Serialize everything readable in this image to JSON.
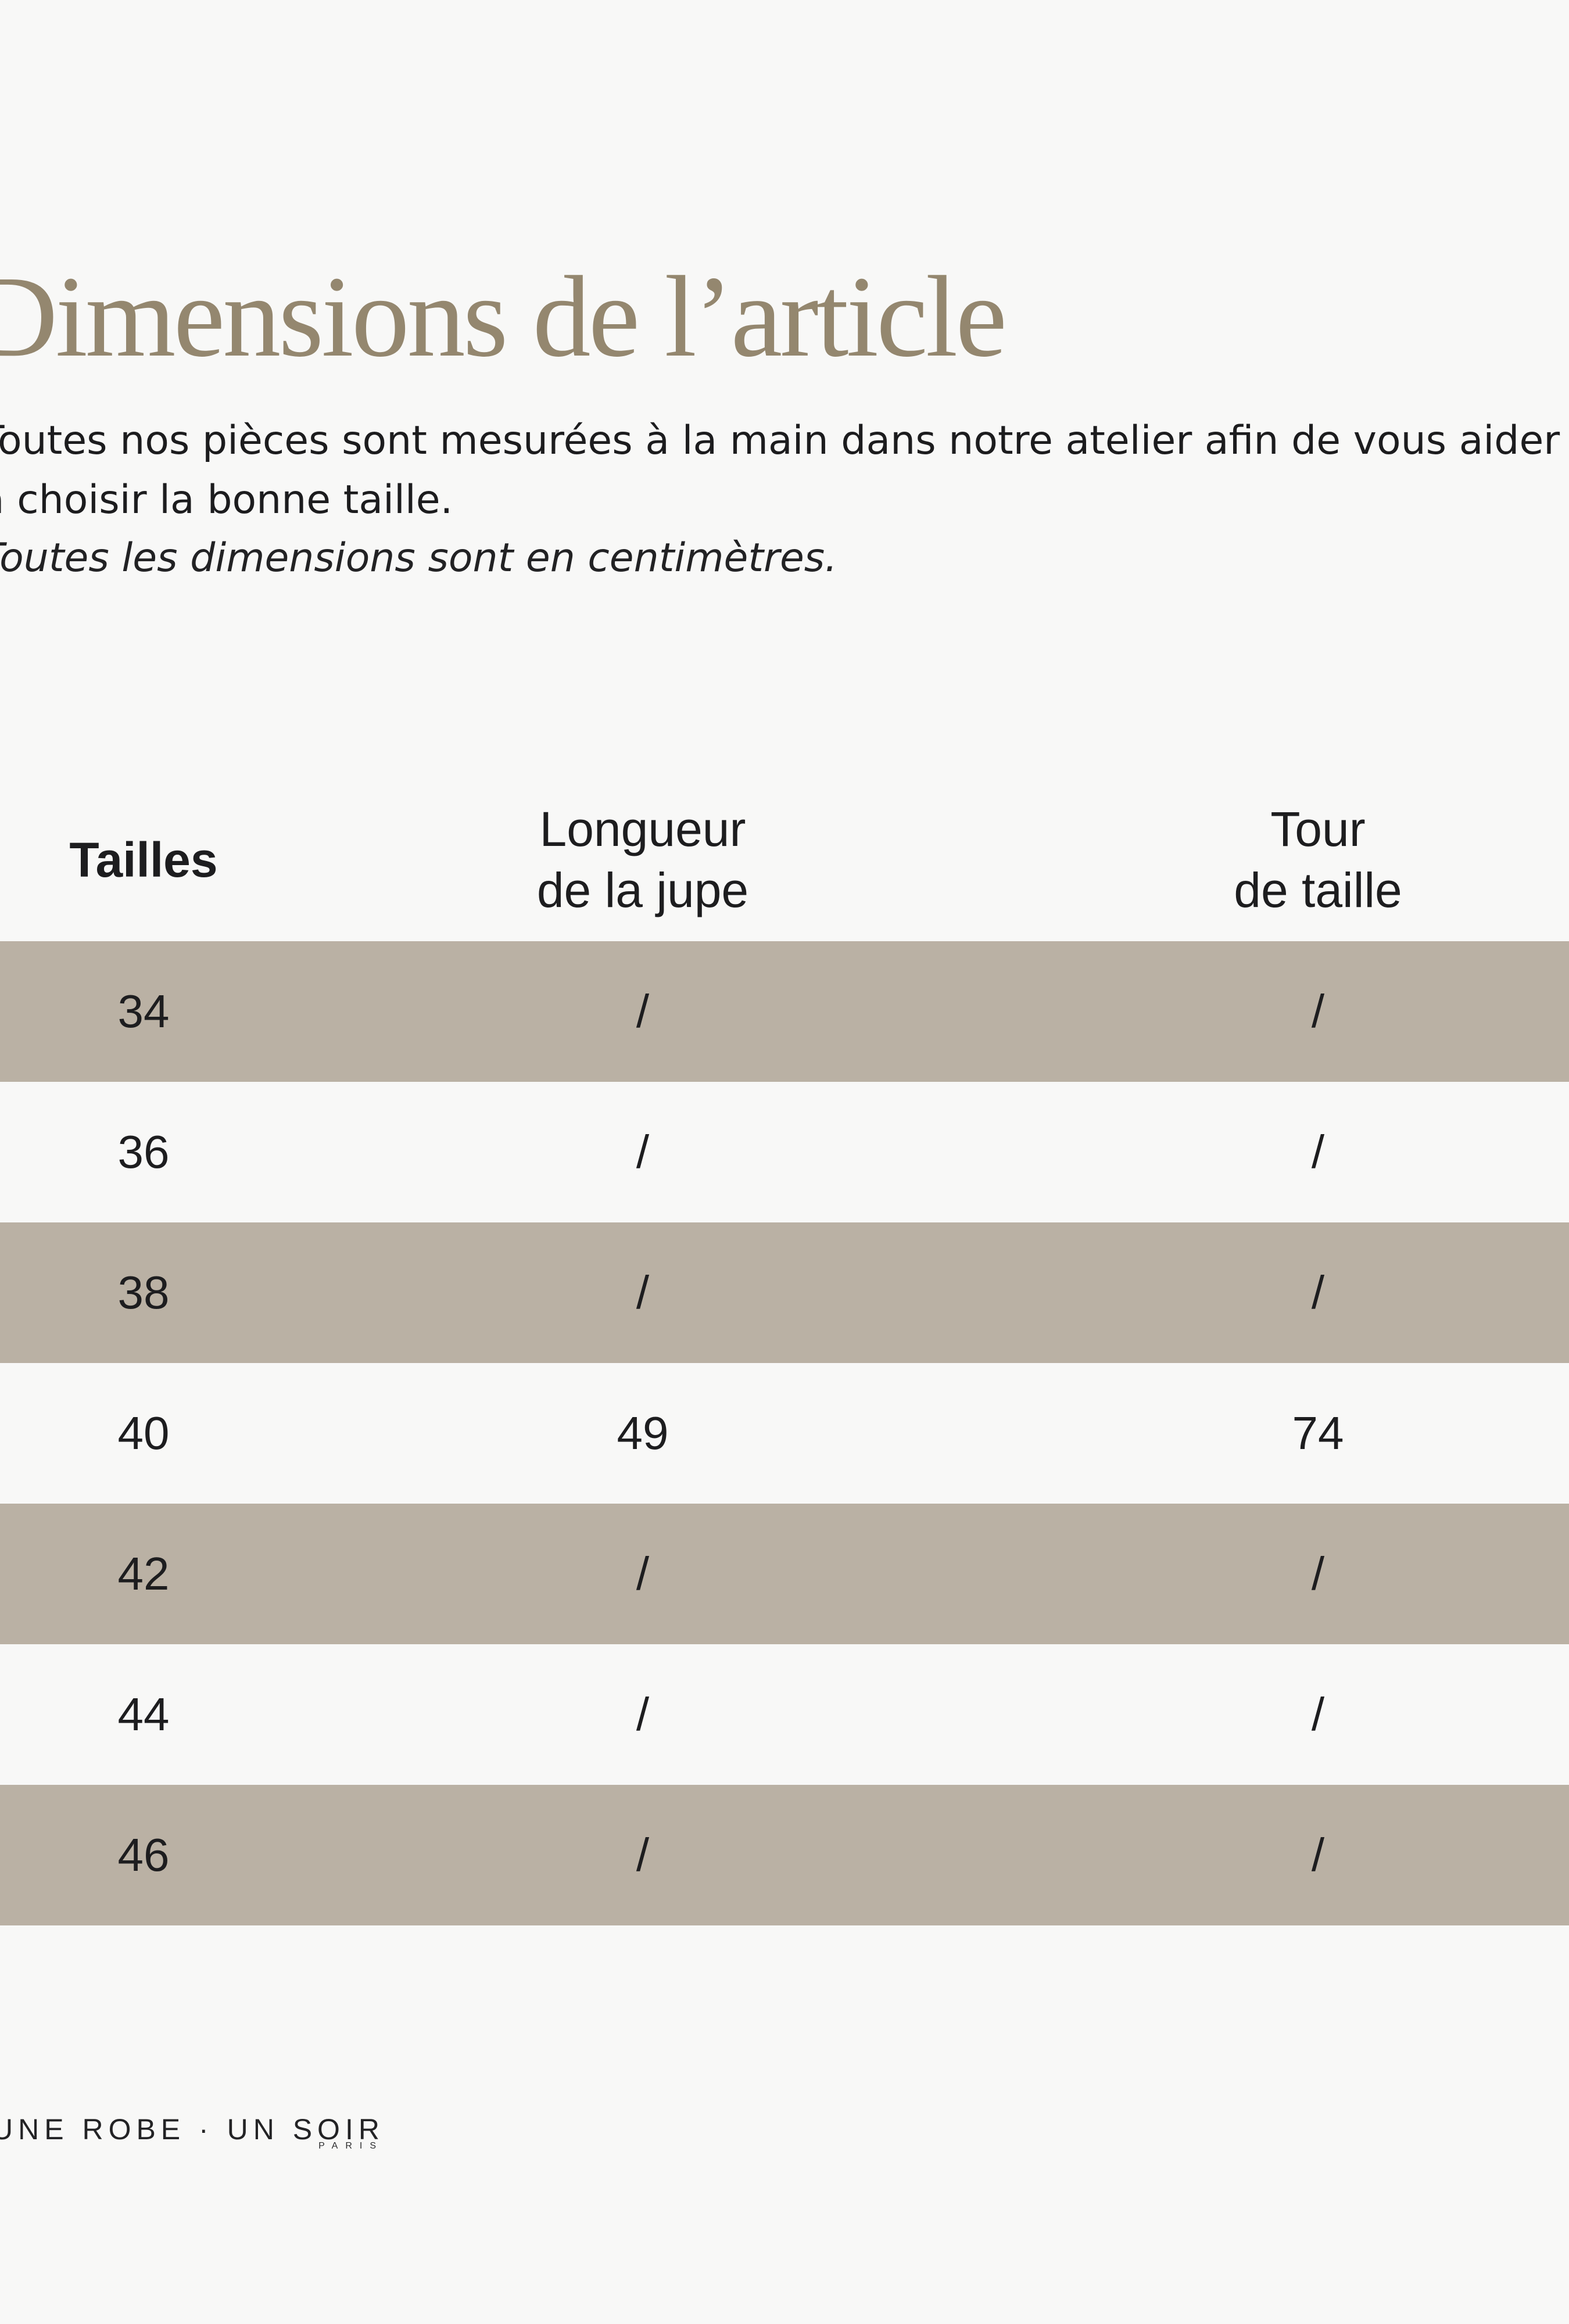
{
  "page": {
    "background_color": "#f8f8f7",
    "stripe_color": "#bab1a4",
    "title_color": "#94876f",
    "text_color": "#1d1d1f"
  },
  "title": {
    "text": "Dimensions de l’article"
  },
  "intro": {
    "line1": "Toutes nos pièces sont mesurées à la main dans notre atelier afin de vous aider",
    "line2": "à choisir la bonne taille.",
    "note": "Toutes les dimensions sont en centimètres."
  },
  "size_table": {
    "columns": [
      {
        "label": "Tailles"
      },
      {
        "line1": "Longueur",
        "line2": "de la jupe"
      },
      {
        "line1": "Tour",
        "line2": "de taille"
      }
    ],
    "rows": [
      {
        "size": "34",
        "longueur": "/",
        "tour": "/"
      },
      {
        "size": "36",
        "longueur": "/",
        "tour": "/"
      },
      {
        "size": "38",
        "longueur": "/",
        "tour": "/"
      },
      {
        "size": "40",
        "longueur": "49",
        "tour": "74"
      },
      {
        "size": "42",
        "longueur": "/",
        "tour": "/"
      },
      {
        "size": "44",
        "longueur": "/",
        "tour": "/"
      },
      {
        "size": "46",
        "longueur": "/",
        "tour": "/"
      }
    ]
  },
  "footer": {
    "brand": "UNE ROBE · UN SOIR",
    "city": "PARIS"
  }
}
